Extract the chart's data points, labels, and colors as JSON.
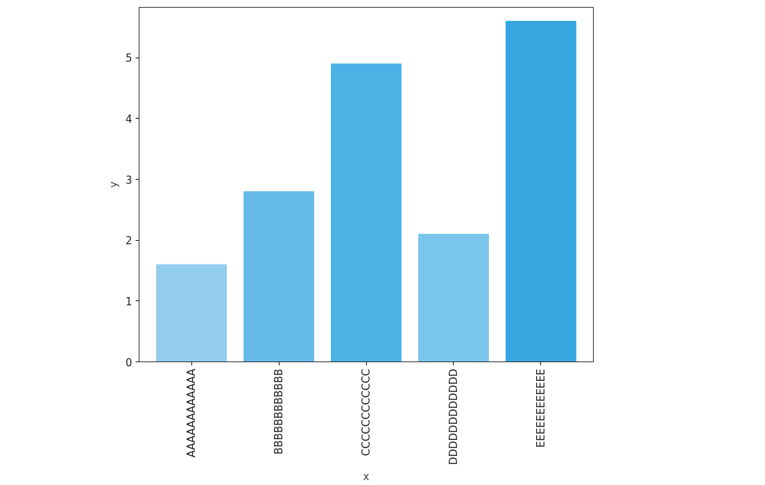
{
  "chart_data": {
    "type": "bar",
    "xlabel": "x",
    "ylabel": "y",
    "categories": [
      "AAAAAAAAAAAA",
      "BBBBBBBBBBBB",
      "CCCCCCCCCCCC",
      "DDDDDDDDDDDD",
      "EEEEEEEEEEEE"
    ],
    "values": [
      1.6,
      2.8,
      4.9,
      2.1,
      5.6
    ],
    "colors": [
      "#92cdee",
      "#65bae8",
      "#4bb2e5",
      "#7ac5eb",
      "#36a6e0"
    ],
    "ylim": [
      0,
      5.83
    ],
    "yticks": [
      0,
      1,
      2,
      3,
      4,
      5
    ],
    "grid": false
  }
}
